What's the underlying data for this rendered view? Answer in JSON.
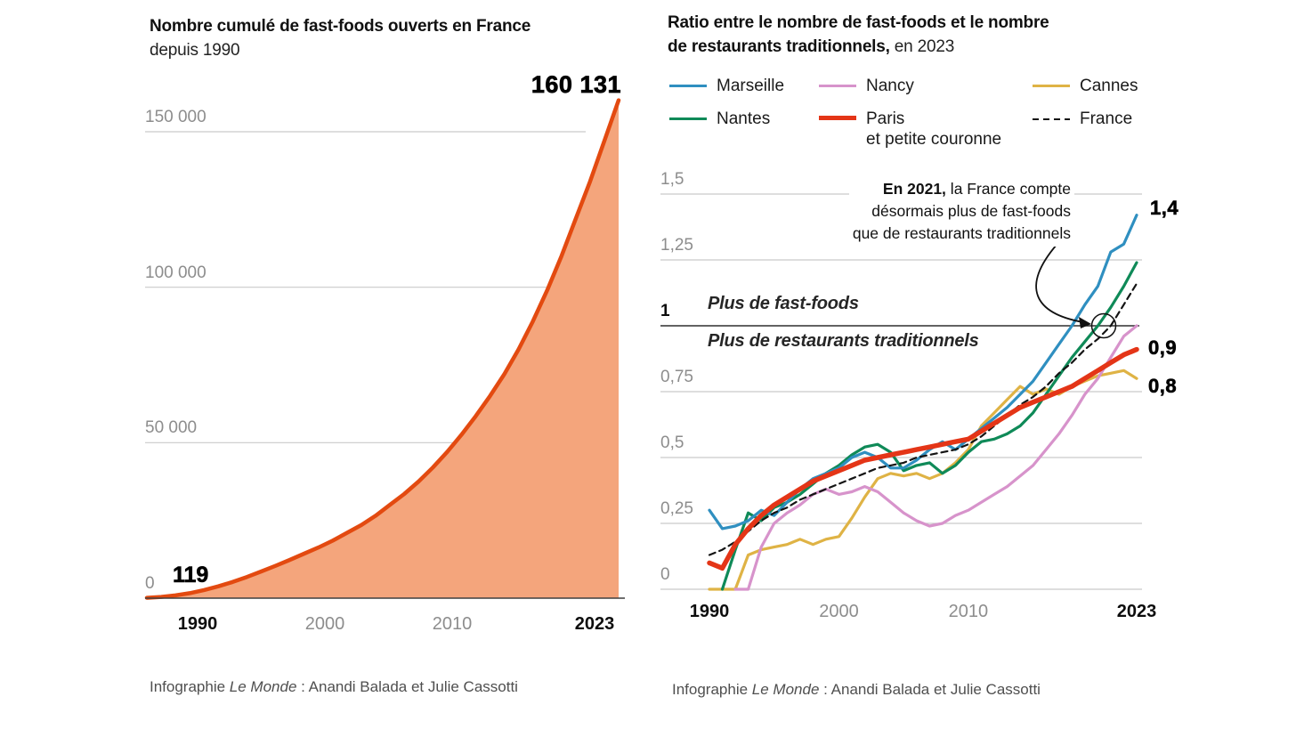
{
  "left": {
    "title_bold": "Nombre cumulé de fast-foods ouverts en France",
    "title_regular": "depuis 1990",
    "big_number": "160 131",
    "start_label": "119"
  },
  "right": {
    "title_bold_line1": "Ratio entre le nombre de fast-foods et le nombre",
    "title_bold_line2": "de restaurants traditionnels,",
    "title_suffix": " en 2023"
  },
  "legend": {
    "items": [
      {
        "label": "Marseille",
        "label2": "",
        "color": "#2f8fc0",
        "style": "solid"
      },
      {
        "label": "Nancy",
        "label2": "",
        "color": "#d793cb",
        "style": "solid"
      },
      {
        "label": "Cannes",
        "label2": "",
        "color": "#dfb345",
        "style": "solid"
      },
      {
        "label": "Nantes",
        "label2": "",
        "color": "#0f8a58",
        "style": "solid"
      },
      {
        "label": "Paris",
        "label2": "et petite couronne",
        "color": "#e43517",
        "style": "thick"
      },
      {
        "label": "France",
        "label2": "",
        "color": "#141414",
        "style": "dashed"
      }
    ]
  },
  "credits": {
    "prefix": "Infographie ",
    "brand": "Le Monde",
    "rest": "  : Anandi Balada et Julie Cassotti"
  },
  "chart_data": [
    {
      "type": "area",
      "title": "Nombre cumulé de fast-foods ouverts en France depuis 1990",
      "x": [
        1990,
        1991,
        1992,
        1993,
        1994,
        1995,
        1996,
        1997,
        1998,
        1999,
        2000,
        2001,
        2002,
        2003,
        2004,
        2005,
        2006,
        2007,
        2008,
        2009,
        2010,
        2011,
        2012,
        2013,
        2014,
        2015,
        2016,
        2017,
        2018,
        2019,
        2020,
        2021,
        2022,
        2023
      ],
      "values": [
        119,
        400,
        900,
        1600,
        2600,
        3800,
        5200,
        6800,
        8600,
        10400,
        12300,
        14300,
        16300,
        18500,
        21000,
        23500,
        26500,
        30000,
        33500,
        37500,
        42000,
        47000,
        52500,
        58500,
        65000,
        72000,
        80000,
        89000,
        99000,
        110000,
        122000,
        134000,
        147000,
        160131
      ],
      "first_point_label": "119",
      "last_point_label": "160 131",
      "line_color": "#e34a10",
      "fill_color": "#f4a57c",
      "ylim": [
        0,
        160131
      ],
      "yticks": [
        {
          "label": "150 000",
          "value": 150000
        },
        {
          "label": "100 000",
          "value": 100000
        },
        {
          "label": "50 000",
          "value": 50000
        },
        {
          "label": "0",
          "value": 0
        }
      ],
      "xticks": [
        {
          "label": "1990",
          "bold": true
        },
        {
          "label": "2000",
          "bold": false
        },
        {
          "label": "2010",
          "bold": false
        },
        {
          "label": "2023",
          "bold": true
        }
      ]
    },
    {
      "type": "line",
      "title": "Ratio entre le nombre de fast-foods et le nombre de restaurants traditionnels, en 2023",
      "x": [
        1990,
        1991,
        1992,
        1993,
        1994,
        1995,
        1996,
        1997,
        1998,
        1999,
        2000,
        2001,
        2002,
        2003,
        2004,
        2005,
        2006,
        2007,
        2008,
        2009,
        2010,
        2011,
        2012,
        2013,
        2014,
        2015,
        2016,
        2017,
        2018,
        2019,
        2020,
        2021,
        2022,
        2023
      ],
      "ylim": [
        0,
        1.5
      ],
      "series": [
        {
          "name": "Cannes",
          "color": "#dfb345",
          "width": 3.2,
          "dashed": false,
          "values": [
            0,
            0,
            0,
            0.13,
            0.15,
            0.16,
            0.17,
            0.19,
            0.17,
            0.19,
            0.2,
            0.27,
            0.35,
            0.42,
            0.44,
            0.43,
            0.44,
            0.42,
            0.44,
            0.48,
            0.53,
            0.62,
            0.67,
            0.72,
            0.77,
            0.74,
            0.76,
            0.74,
            0.77,
            0.79,
            0.81,
            0.82,
            0.83,
            0.8
          ]
        },
        {
          "name": "Nancy",
          "color": "#d793cb",
          "width": 3.2,
          "dashed": false,
          "values": [
            null,
            null,
            0,
            0,
            0.16,
            0.25,
            0.29,
            0.32,
            0.36,
            0.38,
            0.36,
            0.37,
            0.39,
            0.37,
            0.33,
            0.29,
            0.26,
            0.24,
            0.25,
            0.28,
            0.3,
            0.33,
            0.36,
            0.39,
            0.43,
            0.47,
            0.53,
            0.59,
            0.66,
            0.74,
            0.8,
            0.88,
            0.96,
            1.0
          ]
        },
        {
          "name": "Nantes",
          "color": "#0f8a58",
          "width": 3.2,
          "dashed": false,
          "values": [
            null,
            0,
            0.15,
            0.29,
            0.26,
            0.31,
            0.33,
            0.36,
            0.4,
            0.44,
            0.47,
            0.51,
            0.54,
            0.55,
            0.52,
            0.45,
            0.47,
            0.48,
            0.44,
            0.47,
            0.52,
            0.56,
            0.57,
            0.59,
            0.62,
            0.67,
            0.74,
            0.81,
            0.88,
            0.94,
            1.0,
            1.07,
            1.15,
            1.24
          ]
        },
        {
          "name": "Marseille",
          "color": "#2f8fc0",
          "width": 3.2,
          "dashed": false,
          "values": [
            0.3,
            0.23,
            0.24,
            0.26,
            0.3,
            0.28,
            0.33,
            0.38,
            0.42,
            0.44,
            0.46,
            0.5,
            0.52,
            0.5,
            0.46,
            0.46,
            0.49,
            0.53,
            0.56,
            0.53,
            0.57,
            0.61,
            0.65,
            0.69,
            0.74,
            0.79,
            0.86,
            0.93,
            1.0,
            1.08,
            1.15,
            1.28,
            1.31,
            1.42
          ]
        },
        {
          "name": "France",
          "color": "#141414",
          "width": 2.2,
          "dashed": true,
          "values": [
            0.13,
            0.15,
            0.18,
            0.22,
            0.26,
            0.29,
            0.31,
            0.34,
            0.36,
            0.38,
            0.4,
            0.42,
            0.44,
            0.46,
            0.47,
            0.48,
            0.5,
            0.51,
            0.52,
            0.53,
            0.55,
            0.58,
            0.62,
            0.66,
            0.7,
            0.73,
            0.77,
            0.82,
            0.86,
            0.91,
            0.95,
            1.0,
            1.08,
            1.16
          ]
        },
        {
          "name": "Paris et petite couronne",
          "color": "#e43517",
          "width": 5.5,
          "dashed": false,
          "values": [
            0.1,
            0.08,
            0.17,
            0.23,
            0.28,
            0.32,
            0.35,
            0.38,
            0.41,
            0.43,
            0.45,
            0.47,
            0.49,
            0.5,
            0.51,
            0.52,
            0.53,
            0.54,
            0.55,
            0.56,
            0.57,
            0.6,
            0.63,
            0.66,
            0.69,
            0.71,
            0.73,
            0.75,
            0.77,
            0.8,
            0.83,
            0.86,
            0.89,
            0.91
          ]
        }
      ],
      "yticks": [
        {
          "label": "1,5",
          "value": 1.5,
          "bold": false
        },
        {
          "label": "1,25",
          "value": 1.25,
          "bold": false
        },
        {
          "label": "1",
          "value": 1,
          "bold": true
        },
        {
          "label": "0,75",
          "value": 0.75,
          "bold": false
        },
        {
          "label": "0,5",
          "value": 0.5,
          "bold": false
        },
        {
          "label": "0,25",
          "value": 0.25,
          "bold": false
        },
        {
          "label": "0",
          "value": 0,
          "bold": false
        }
      ],
      "xticks": [
        {
          "label": "1990",
          "bold": true,
          "year": 1990
        },
        {
          "label": "2000",
          "bold": false,
          "year": 2000
        },
        {
          "label": "2010",
          "bold": false,
          "year": 2010
        },
        {
          "label": "2023",
          "bold": true,
          "year": 2023
        }
      ],
      "zone_labels": {
        "above": "Plus de fast-foods",
        "below": "Plus de restaurants traditionnels"
      },
      "annotation": {
        "bold": "En 2021,",
        "line1_rest": " la France compte",
        "line2": "désormais plus de fast-foods",
        "line3": "que de restaurants traditionnels",
        "marker_year": 2021,
        "marker_value": 1
      },
      "end_labels": [
        {
          "text": "1,4",
          "bg": "#b8dcee",
          "series": "Marseille"
        },
        {
          "text": "0,9",
          "bg": "#f6a288",
          "series": "Paris et petite couronne"
        },
        {
          "text": "0,8",
          "bg": "#f1d283",
          "series": "Cannes"
        }
      ]
    }
  ]
}
